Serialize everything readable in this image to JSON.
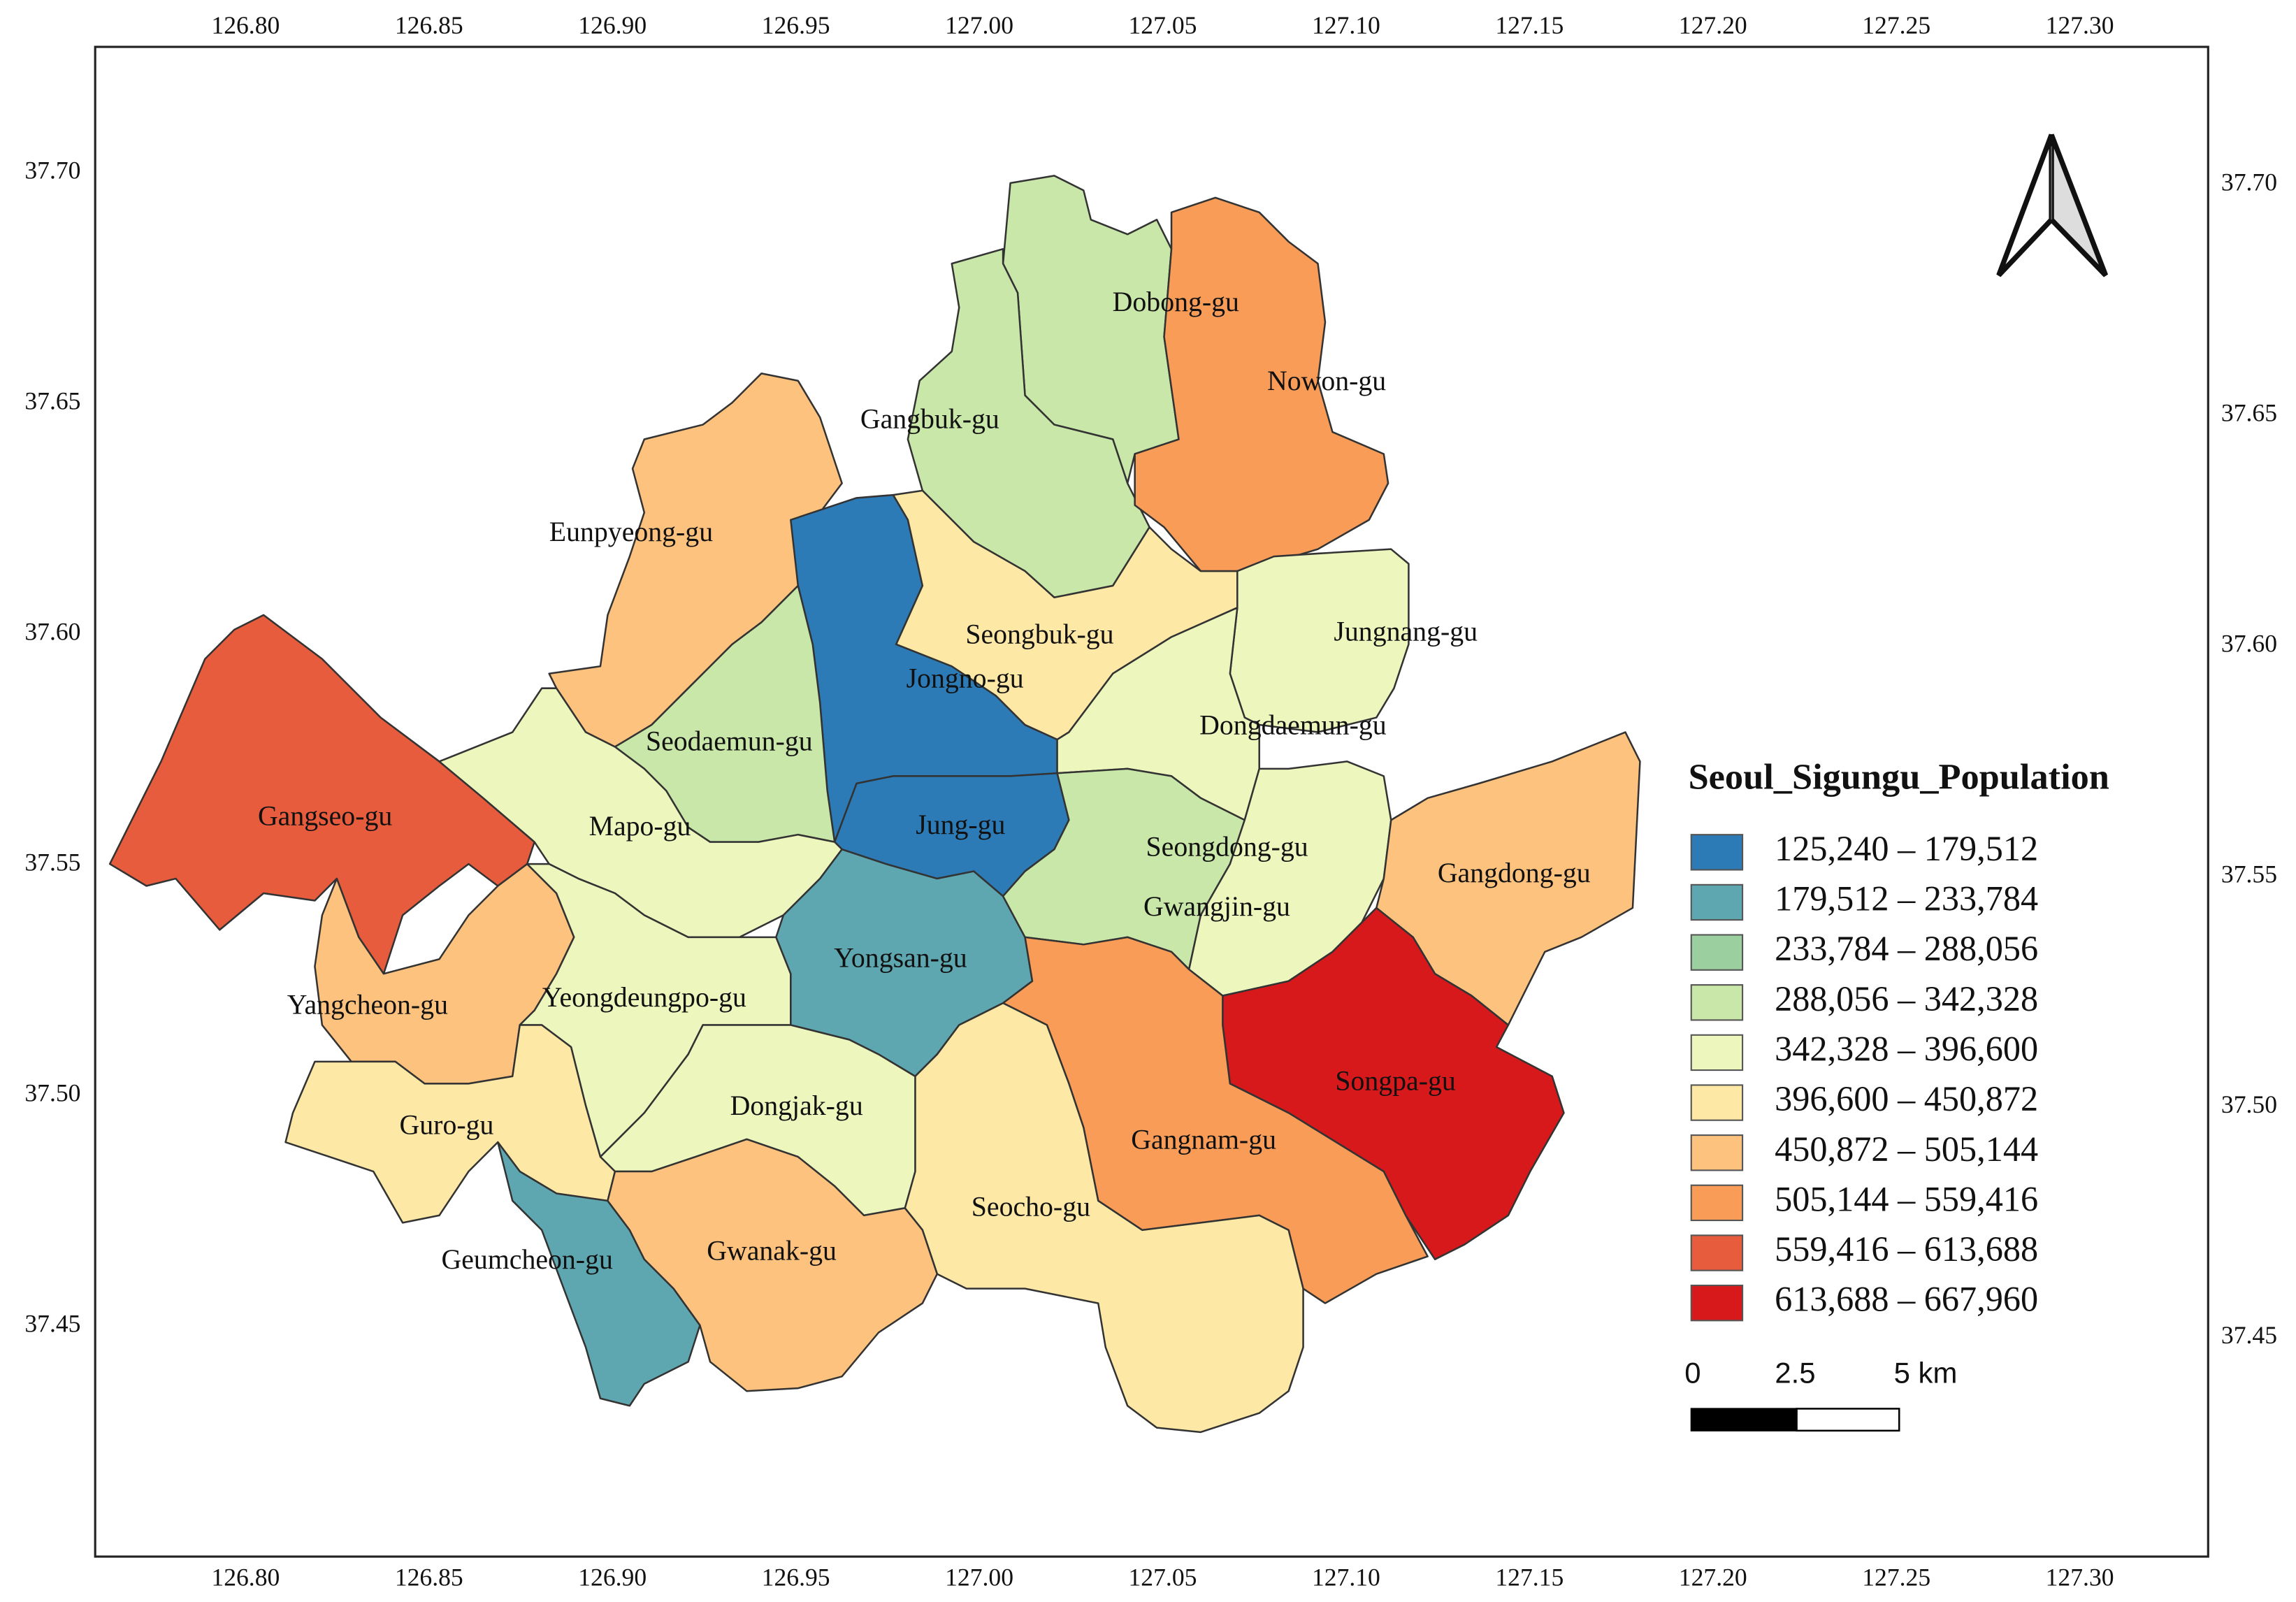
{
  "map": {
    "xlim": [
      126.759,
      127.335
    ],
    "ylim": [
      37.4013,
      37.7286
    ],
    "xticks": [
      {
        "value": 126.8,
        "label": "126.80"
      },
      {
        "value": 126.85,
        "label": "126.85"
      },
      {
        "value": 126.9,
        "label": "126.90"
      },
      {
        "value": 126.95,
        "label": "126.95"
      },
      {
        "value": 127,
        "label": "127.00"
      },
      {
        "value": 127.05,
        "label": "127.05"
      },
      {
        "value": 127.1,
        "label": "127.10"
      },
      {
        "value": 127.15,
        "label": "127.15"
      },
      {
        "value": 127.2,
        "label": "127.20"
      },
      {
        "value": 127.25,
        "label": "127.25"
      },
      {
        "value": 127.3,
        "label": "127.30"
      }
    ],
    "yticks": [
      {
        "value": 37.7,
        "label": "37.70"
      },
      37.65,
      {
        "value": 37.6,
        "label": "37.60"
      },
      37.55,
      {
        "value": 37.5,
        "label": "37.50"
      },
      37.45
    ],
    "districts": [
      {
        "name": "Dobong-gu",
        "color": "#c8e7a9"
      },
      {
        "name": "Gangbuk-gu",
        "color": "#c8e7a9"
      },
      {
        "name": "Nowon-gu",
        "color": "#f89c58"
      },
      {
        "name": "Eunpyeong-gu",
        "color": "#fdc27d"
      },
      {
        "name": "Jongno-gu",
        "color": "#2c7bb6"
      },
      {
        "name": "Seongbuk-gu",
        "color": "#fde8a6"
      },
      {
        "name": "Jungnang-gu",
        "color": "#ecf6bd"
      },
      {
        "name": "Dongdaemun-gu",
        "color": "#ecf6bd"
      },
      {
        "name": "Seodaemun-gu",
        "color": "#c8e7a9"
      },
      {
        "name": "Jung-gu",
        "color": "#2c7bb6"
      },
      {
        "name": "Gangseo-gu",
        "color": "#e65c3c"
      },
      {
        "name": "Mapo-gu",
        "color": "#ecf6bd"
      },
      {
        "name": "Yangcheon-gu",
        "color": "#fdc27d"
      },
      {
        "name": "Yeongdeungpo-gu",
        "color": "#ecf6bd"
      },
      {
        "name": "Yongsan-gu",
        "color": "#5ea7b1"
      },
      {
        "name": "Seongdong-gu",
        "color": "#c8e7a9"
      },
      {
        "name": "Gwangjin-gu",
        "color": "#ecf6bd"
      },
      {
        "name": "Gangdong-gu",
        "color": "#fdc27d"
      },
      {
        "name": "Songpa-gu",
        "color": "#d7191c"
      },
      {
        "name": "Gangnam-gu",
        "color": "#f89c58"
      },
      {
        "name": "Seocho-gu",
        "color": "#fde8a6"
      },
      {
        "name": "Dongjak-gu",
        "color": "#ecf6bd"
      },
      {
        "name": "Guro-gu",
        "color": "#fde8a6"
      },
      {
        "name": "Geumcheon-gu",
        "color": "#5ea7b1"
      },
      {
        "name": "Gwanak-gu",
        "color": "#fdc27d"
      }
    ]
  },
  "legend": {
    "title": "Seoul_Sigungu_Population",
    "items": [
      {
        "label": "125,240 – 179,512",
        "color": "#2c7bb6"
      },
      {
        "label": "179,512 – 233,784",
        "color": "#5ea7b1"
      },
      {
        "label": "233,784 – 288,056",
        "color": "#9ccfa0"
      },
      {
        "label": "288,056 – 342,328",
        "color": "#c8e7a9"
      },
      {
        "label": "342,328 – 396,600",
        "color": "#ecf6bd"
      },
      {
        "label": "396,600 – 450,872",
        "color": "#fde8a6"
      },
      {
        "label": "450,872 – 505,144",
        "color": "#fdc27d"
      },
      {
        "label": "505,144 – 559,416",
        "color": "#f89c58"
      },
      {
        "label": "559,416 – 613,688",
        "color": "#e65c3c"
      },
      {
        "label": "613,688 – 667,960",
        "color": "#d7191c"
      }
    ]
  },
  "scale_bar": {
    "labels": [
      "0",
      "2.5",
      "5 km"
    ]
  }
}
